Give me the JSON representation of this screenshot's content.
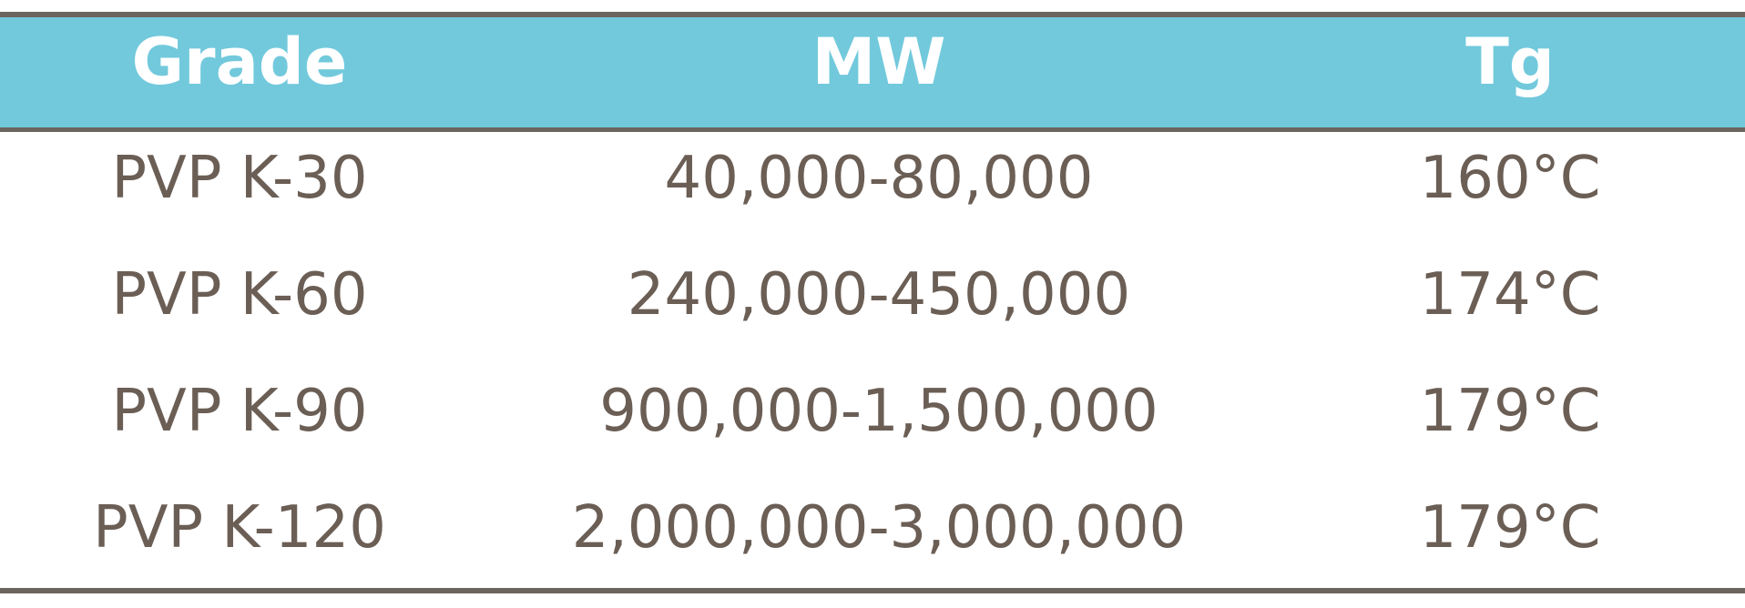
{
  "table": {
    "header": [
      "Grade",
      "MW",
      "Tg"
    ],
    "rows": [
      [
        "PVP K-30",
        "40,000-80,000",
        "160°C"
      ],
      [
        "PVP K-60",
        "240,000-450,000",
        "174°C"
      ],
      [
        "PVP K-90",
        "900,000-1,500,000",
        "179°C"
      ],
      [
        "PVP K-120",
        "2,000,000-3,000,000",
        "179°C"
      ]
    ]
  }
}
